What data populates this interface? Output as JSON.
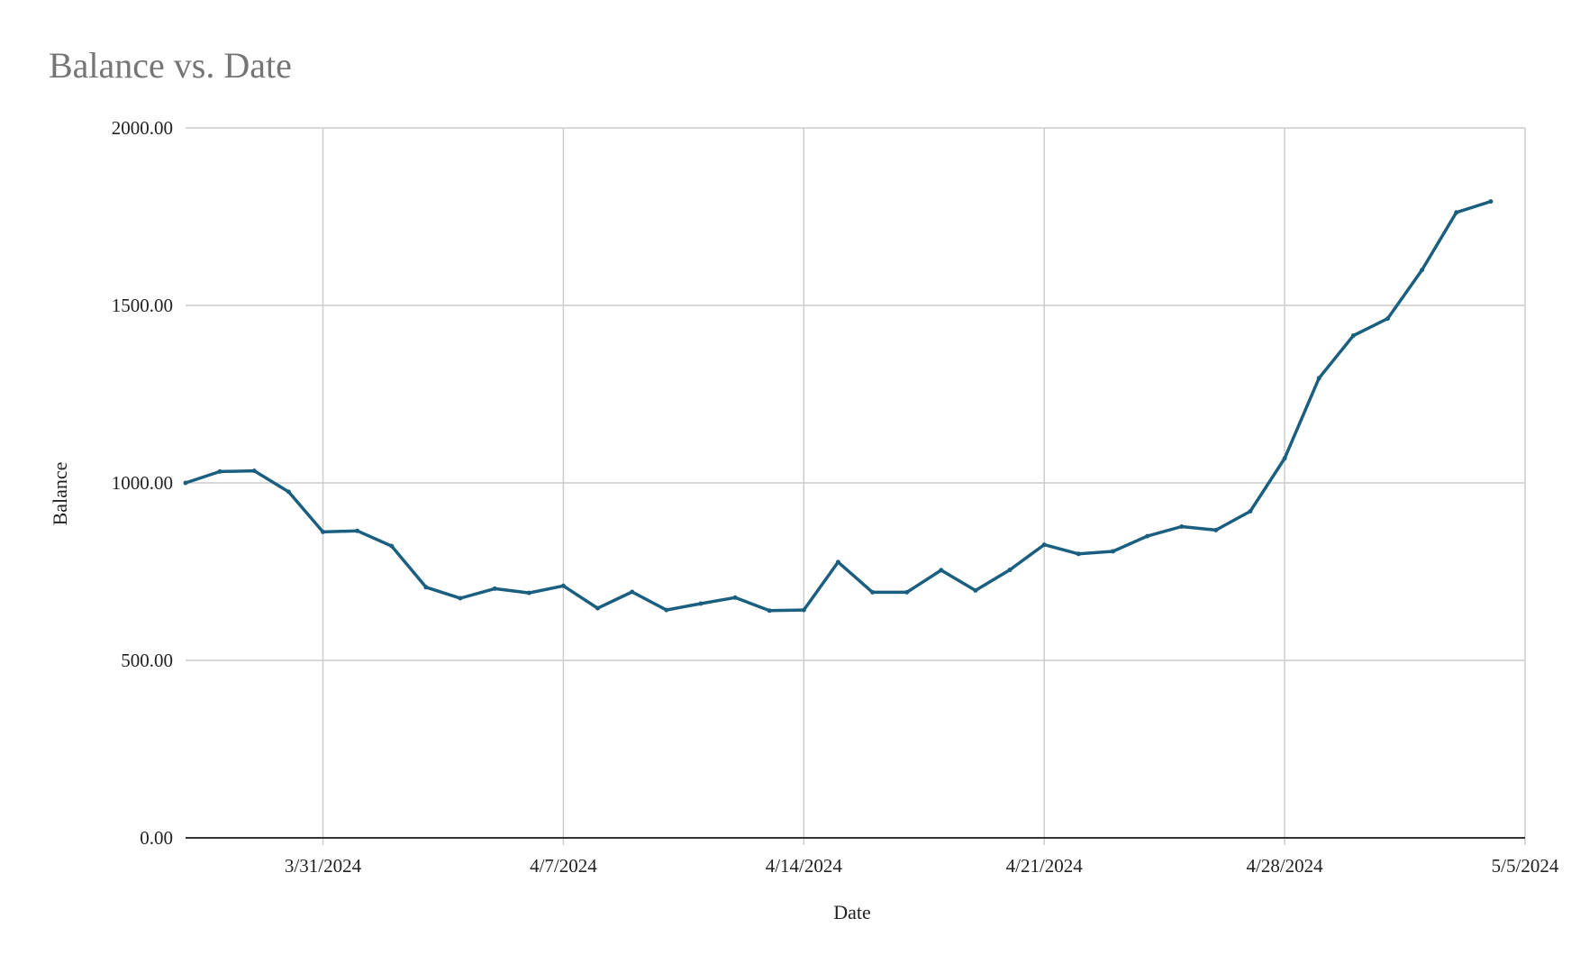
{
  "chart_data": {
    "type": "line",
    "title": "Balance vs. Date",
    "xlabel": "Date",
    "ylabel": "Balance",
    "x_start": "3/27/2024",
    "x_end": "5/5/2024",
    "x_tick_labels": [
      "3/31/2024",
      "4/7/2024",
      "4/14/2024",
      "4/21/2024",
      "4/28/2024",
      "5/5/2024"
    ],
    "y_tick_labels": [
      "0.00",
      "500.00",
      "1000.00",
      "1500.00",
      "2000.00"
    ],
    "ylim": [
      0,
      2000
    ],
    "grid": true,
    "legend": "none",
    "series": [
      {
        "color": "#1b5f80",
        "points": [
          {
            "x": "3/27/2024",
            "y": 1000
          },
          {
            "x": "3/28/2024",
            "y": 1032
          },
          {
            "x": "3/29/2024",
            "y": 1034
          },
          {
            "x": "3/30/2024",
            "y": 975
          },
          {
            "x": "3/31/2024",
            "y": 862
          },
          {
            "x": "4/1/2024",
            "y": 865
          },
          {
            "x": "4/2/2024",
            "y": 822
          },
          {
            "x": "4/3/2024",
            "y": 706
          },
          {
            "x": "4/4/2024",
            "y": 675
          },
          {
            "x": "4/5/2024",
            "y": 702
          },
          {
            "x": "4/6/2024",
            "y": 690
          },
          {
            "x": "4/7/2024",
            "y": 710
          },
          {
            "x": "4/8/2024",
            "y": 647
          },
          {
            "x": "4/9/2024",
            "y": 693
          },
          {
            "x": "4/10/2024",
            "y": 642
          },
          {
            "x": "4/11/2024",
            "y": 660
          },
          {
            "x": "4/12/2024",
            "y": 677
          },
          {
            "x": "4/13/2024",
            "y": 640
          },
          {
            "x": "4/14/2024",
            "y": 642
          },
          {
            "x": "4/15/2024",
            "y": 777
          },
          {
            "x": "4/16/2024",
            "y": 692
          },
          {
            "x": "4/17/2024",
            "y": 692
          },
          {
            "x": "4/18/2024",
            "y": 754
          },
          {
            "x": "4/19/2024",
            "y": 697
          },
          {
            "x": "4/20/2024",
            "y": 755
          },
          {
            "x": "4/21/2024",
            "y": 826
          },
          {
            "x": "4/22/2024",
            "y": 800
          },
          {
            "x": "4/23/2024",
            "y": 807
          },
          {
            "x": "4/24/2024",
            "y": 850
          },
          {
            "x": "4/25/2024",
            "y": 877
          },
          {
            "x": "4/26/2024",
            "y": 867
          },
          {
            "x": "4/27/2024",
            "y": 920
          },
          {
            "x": "4/28/2024",
            "y": 1069
          },
          {
            "x": "4/29/2024",
            "y": 1295
          },
          {
            "x": "4/30/2024",
            "y": 1415
          },
          {
            "x": "5/1/2024",
            "y": 1463
          },
          {
            "x": "5/2/2024",
            "y": 1600
          },
          {
            "x": "5/3/2024",
            "y": 1762
          },
          {
            "x": "5/4/2024",
            "y": 1793
          }
        ]
      }
    ]
  }
}
